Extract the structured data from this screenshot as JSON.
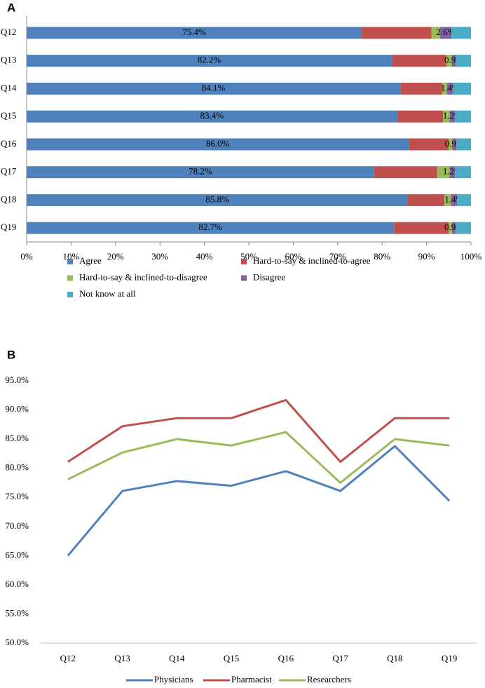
{
  "chart_data": [
    {
      "type": "stacked-barh",
      "panel": "A",
      "categories": [
        "Q12",
        "Q13",
        "Q14",
        "Q15",
        "Q16",
        "Q17",
        "Q18",
        "Q19"
      ],
      "series": [
        {
          "name": "Agree",
          "color": "#4f81bd",
          "values": [
            75.4,
            82.2,
            84.1,
            83.4,
            86.0,
            78.2,
            85.8,
            82.7
          ],
          "value_labels": [
            "75.4%",
            "82.2%",
            "84.1%",
            "83.4%",
            "86.0%",
            "78.2%",
            "85.8%",
            "82.7%"
          ]
        },
        {
          "name": "Hard-to-say & inclined-to-agree",
          "color": "#c0504d",
          "values": [
            15.7,
            12.2,
            9.4,
            10.3,
            9.0,
            14.2,
            8.2,
            12.3
          ]
        },
        {
          "name": "Hard-to-say & inclined-to-disagree",
          "color": "#9bbb59",
          "values": [
            1.9,
            1.3,
            1.1,
            1.5,
            0.8,
            2.8,
            1.5,
            0.7
          ]
        },
        {
          "name": "Disagree",
          "color": "#8064a2",
          "values": [
            2.6,
            0.9,
            1.4,
            1.2,
            0.9,
            1.2,
            1.4,
            0.9
          ],
          "value_labels": [
            "2.6%",
            "0.9%",
            "1.4%",
            "1.2%",
            "0.9%",
            "1.2%",
            "1.4%",
            "0.9%"
          ]
        },
        {
          "name": "Not know at all",
          "color": "#4bacc6",
          "values": [
            4.4,
            3.4,
            4.0,
            3.6,
            3.3,
            3.6,
            3.1,
            3.4
          ]
        }
      ],
      "xlim": [
        0,
        100
      ],
      "xticks": [
        {
          "value": 0,
          "label": "0%"
        },
        {
          "value": 10,
          "label": "10%"
        },
        {
          "value": 20,
          "label": "20%"
        },
        {
          "value": 30,
          "label": "30%"
        },
        {
          "value": 40,
          "label": "40%"
        },
        {
          "value": 50,
          "label": "50%"
        },
        {
          "value": 60,
          "label": "60%"
        },
        {
          "value": 70,
          "label": "70%"
        },
        {
          "value": 80,
          "label": "80%"
        },
        {
          "value": 90,
          "label": "90%"
        },
        {
          "value": 100,
          "label": "100%"
        }
      ],
      "grid": false,
      "legend": "bottom"
    },
    {
      "type": "line",
      "panel": "B",
      "categories": [
        "Q12",
        "Q13",
        "Q14",
        "Q15",
        "Q16",
        "Q17",
        "Q18",
        "Q19"
      ],
      "series": [
        {
          "name": "Physicians",
          "color": "#4f81bd",
          "values": [
            65.0,
            76.1,
            77.8,
            77.0,
            79.5,
            76.1,
            83.8,
            74.4
          ]
        },
        {
          "name": "Pharmacist",
          "color": "#c0504d",
          "values": [
            81.1,
            87.2,
            88.6,
            88.6,
            91.7,
            81.1,
            88.6,
            88.6
          ]
        },
        {
          "name": "Researchers",
          "color": "#9bbb59",
          "values": [
            78.1,
            82.7,
            85.0,
            83.9,
            86.2,
            77.5,
            85.0,
            83.9
          ]
        }
      ],
      "ylim": [
        50,
        95
      ],
      "yticks": [
        {
          "value": 50,
          "label": "50.0%"
        },
        {
          "value": 55,
          "label": "55.0%"
        },
        {
          "value": 60,
          "label": "60.0%"
        },
        {
          "value": 65,
          "label": "65.0%"
        },
        {
          "value": 70,
          "label": "70.0%"
        },
        {
          "value": 75,
          "label": "75.0%"
        },
        {
          "value": 80,
          "label": "80.0%"
        },
        {
          "value": 85,
          "label": "85.0%"
        },
        {
          "value": 90,
          "label": "90.0%"
        },
        {
          "value": 95,
          "label": "95.0%"
        }
      ],
      "grid": false,
      "legend": "bottom"
    }
  ]
}
